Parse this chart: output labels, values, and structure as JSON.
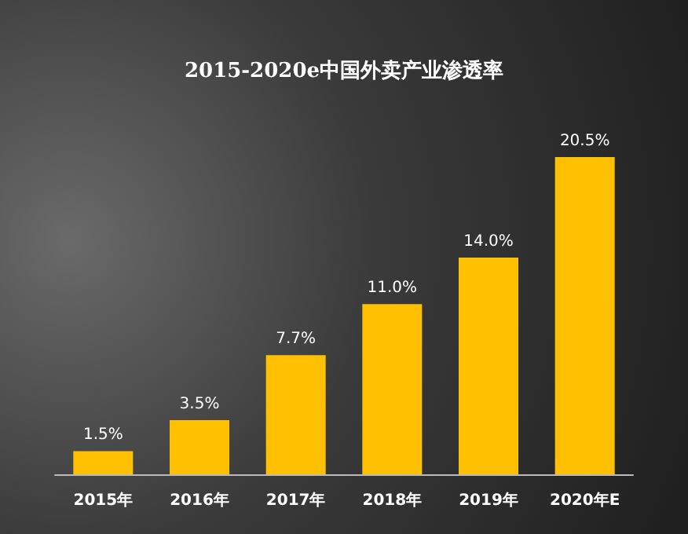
{
  "chart_data": {
    "type": "bar",
    "title": "2015-2020e中国外卖产业渗透率",
    "categories": [
      "2015年",
      "2016年",
      "2017年",
      "2018年",
      "2019年",
      "2020年E"
    ],
    "values": [
      1.5,
      3.5,
      7.7,
      11.0,
      14.0,
      20.5
    ],
    "value_labels": [
      "1.5%",
      "3.5%",
      "7.7%",
      "11.0%",
      "14.0%",
      "20.5%"
    ],
    "color": "#ffc000"
  }
}
